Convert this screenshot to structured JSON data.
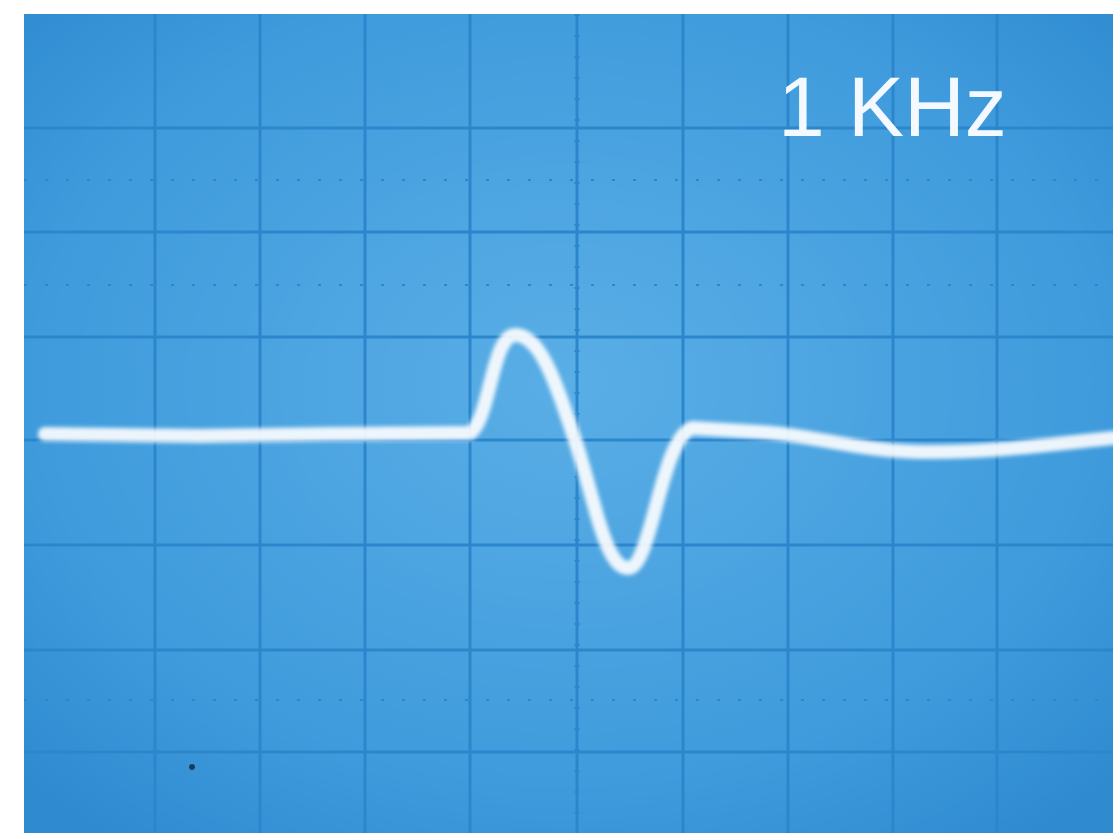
{
  "screen_label": "1 KHz"
}
